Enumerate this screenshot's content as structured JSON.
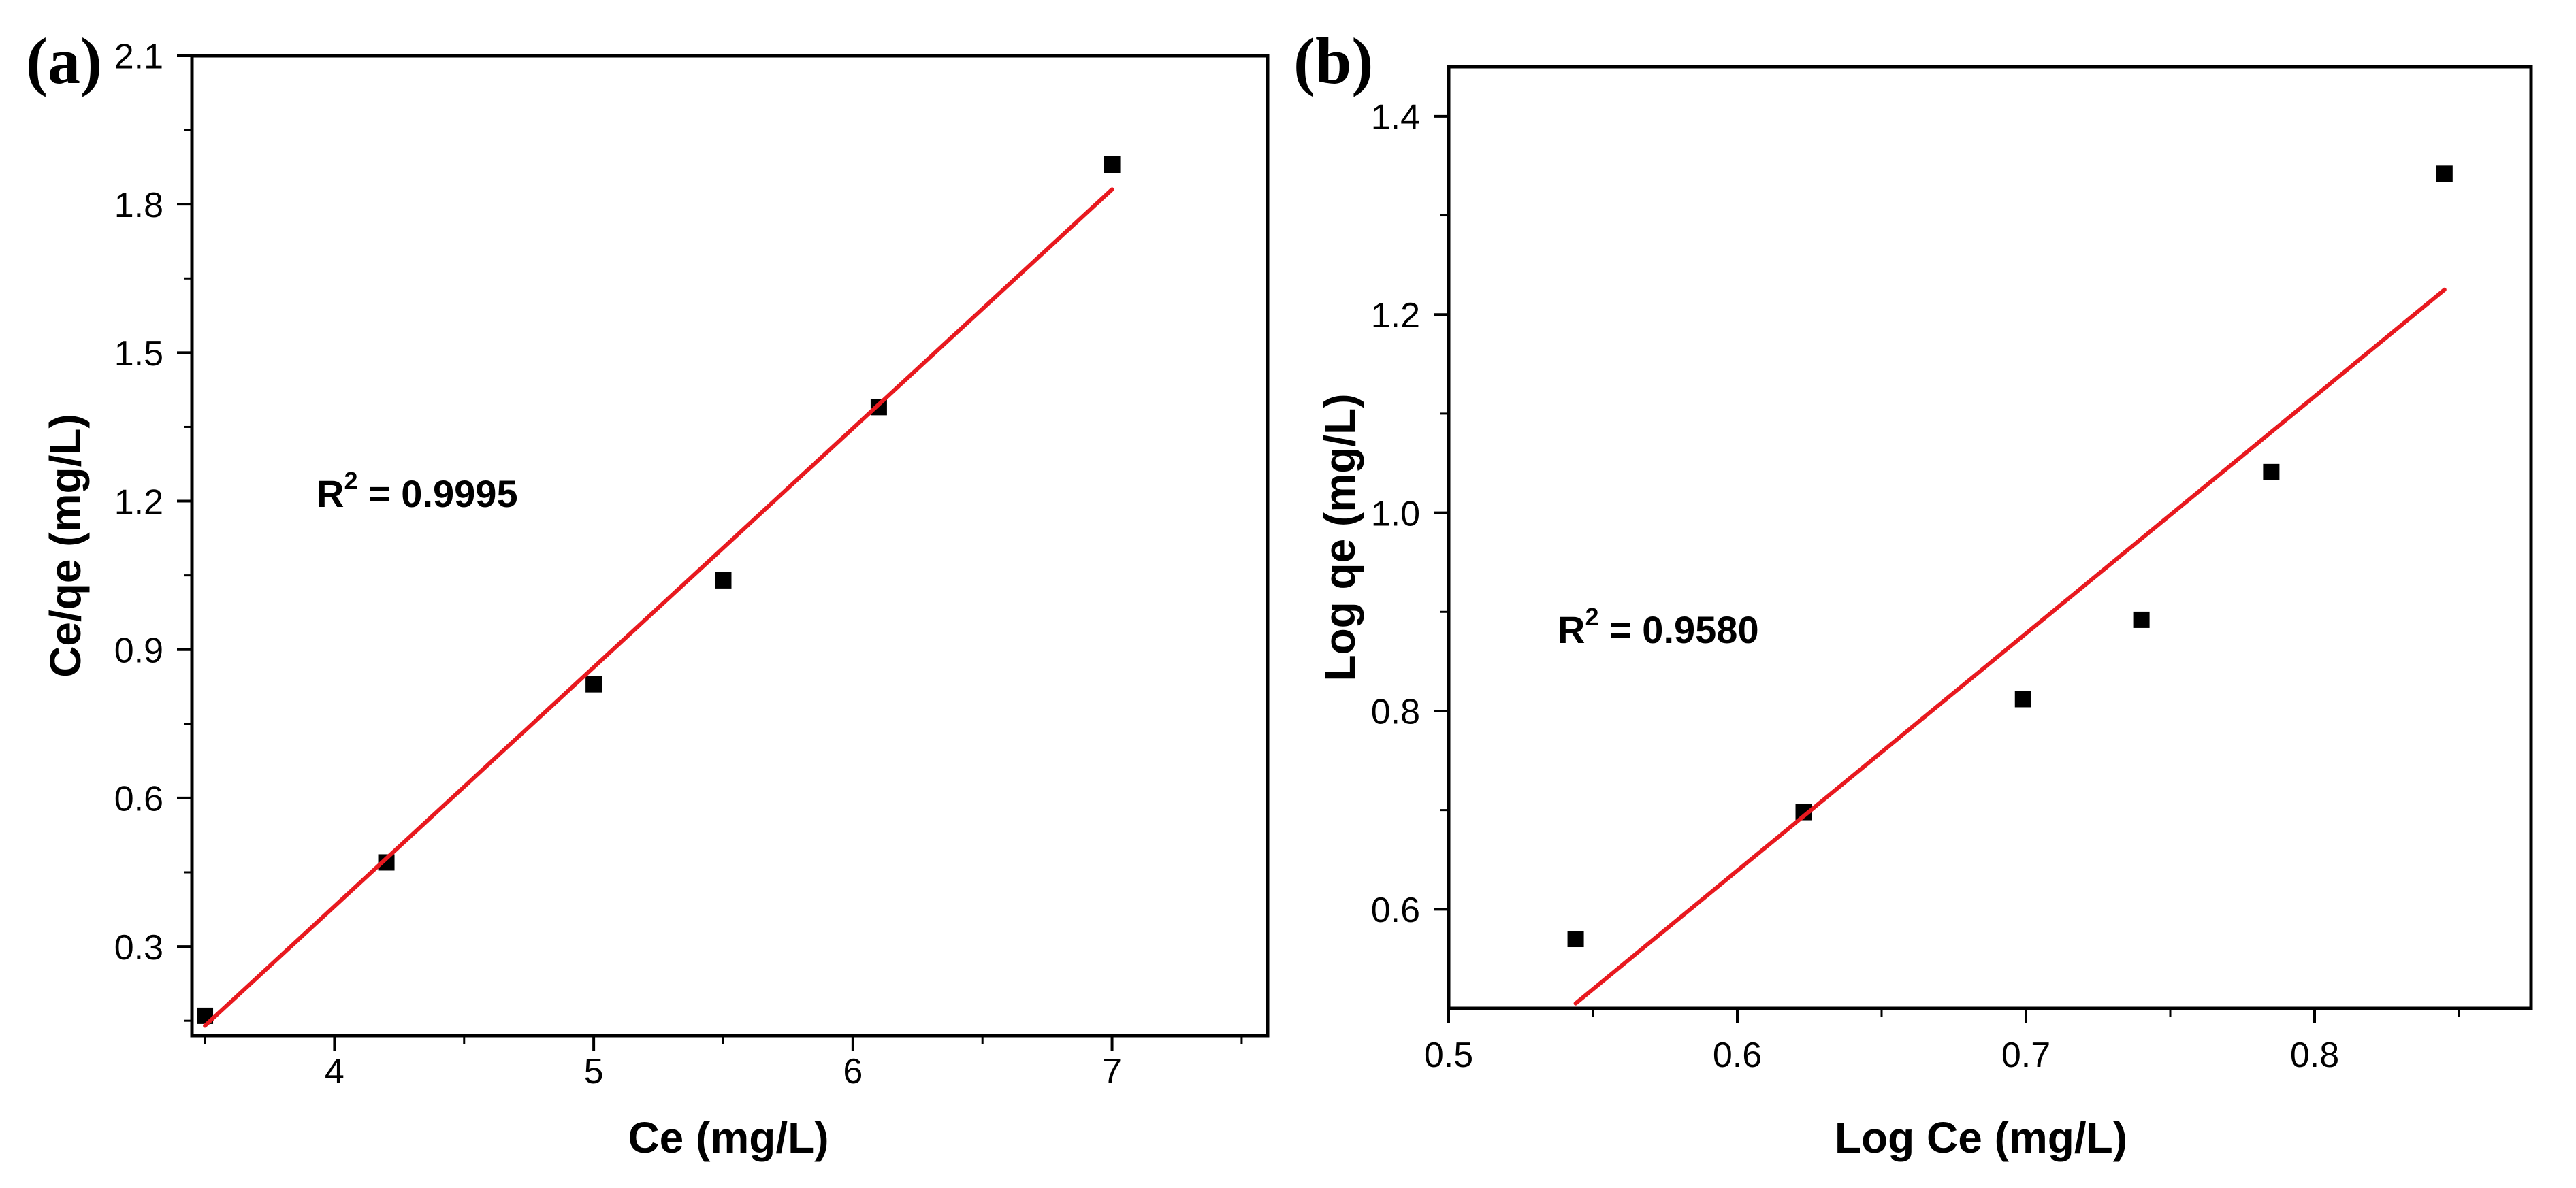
{
  "chart_data": [
    {
      "panel": "(a)",
      "type": "scatter",
      "title": "",
      "xlabel": "Ce (mg/L)",
      "ylabel": "Ce/qe (mg/L)",
      "xlim": [
        3.45,
        7.6
      ],
      "ylim": [
        0.12,
        2.1
      ],
      "xticks": [
        4,
        5,
        6,
        7
      ],
      "xtick_labels": [
        "4",
        "5",
        "6",
        "7"
      ],
      "yticks": [
        0.3,
        0.6,
        0.9,
        1.2,
        1.5,
        1.8,
        2.1
      ],
      "ytick_labels": [
        "0.3",
        "0.6",
        "0.9",
        "1.2",
        "1.5",
        "1.8",
        "2.1"
      ],
      "series": [
        {
          "name": "data",
          "marker": "square",
          "color": "#000000",
          "x": [
            3.5,
            4.2,
            5.0,
            5.5,
            6.1,
            7.0
          ],
          "y": [
            0.16,
            0.47,
            0.83,
            1.04,
            1.39,
            1.88
          ]
        },
        {
          "name": "linear fit",
          "style": "line",
          "color": "#e8191f",
          "x": [
            3.5,
            7.0
          ],
          "y": [
            0.14,
            1.83
          ]
        }
      ],
      "annotation": {
        "prefix": "R",
        "sup": "2",
        "text": " = 0.9995"
      }
    },
    {
      "panel": "(b)",
      "type": "scatter",
      "title": "",
      "xlabel": "Log Ce (mg/L)",
      "ylabel": "Log qe (mg/L)",
      "xlim": [
        0.5,
        0.875
      ],
      "ylim": [
        0.5,
        1.45
      ],
      "xticks": [
        0.5,
        0.6,
        0.7,
        0.8
      ],
      "xtick_labels": [
        "0.5",
        "0.6",
        "0.7",
        "0.8"
      ],
      "yticks": [
        0.6,
        0.8,
        1.0,
        1.2,
        1.4
      ],
      "ytick_labels": [
        "0.6",
        "0.8",
        "1.0",
        "1.2",
        "1.4"
      ],
      "series": [
        {
          "name": "data",
          "marker": "square",
          "color": "#000000",
          "x": [
            0.544,
            0.623,
            0.699,
            0.74,
            0.785,
            0.845
          ],
          "y": [
            0.57,
            0.698,
            0.812,
            0.892,
            1.041,
            1.342
          ]
        },
        {
          "name": "linear fit",
          "style": "line",
          "color": "#e8191f",
          "x": [
            0.544,
            0.845
          ],
          "y": [
            0.505,
            1.225
          ]
        }
      ],
      "annotation": {
        "prefix": "R",
        "sup": "2",
        "text": " = 0.9580"
      }
    }
  ]
}
